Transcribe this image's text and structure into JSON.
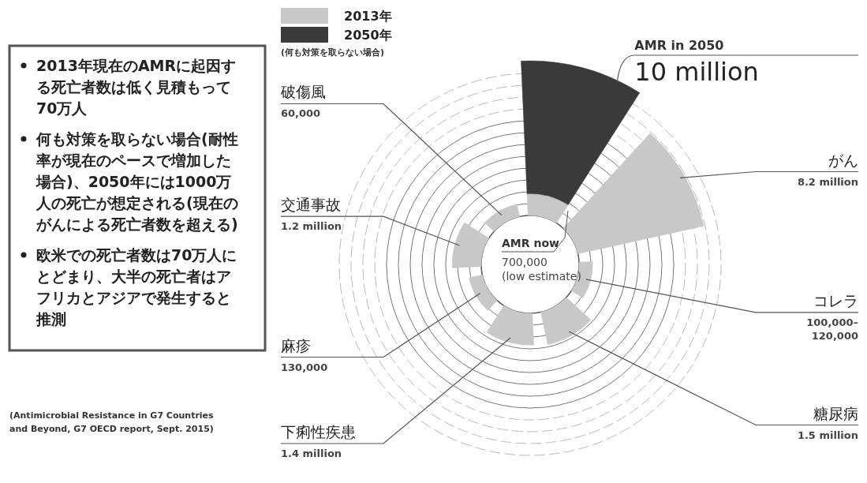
{
  "chart_data": {
    "type": "other",
    "categories": [
      "AMR in 2050",
      "AMR now",
      "がん",
      "コレラ",
      "糖尿病",
      "下痢性疾患",
      "麻疹",
      "交通事故",
      "破傷風"
    ],
    "series": [
      {
        "name": "2013年",
        "color": "#c8c8c8",
        "values": [
          null,
          700000,
          8200000,
          120000,
          1500000,
          1400000,
          130000,
          1200000,
          60000
        ],
        "value_labels": [
          null,
          "700,000\n(low estimate)",
          "8.2 million",
          "100,000–\n120,000",
          "1.5 million",
          "1.4 million",
          "130,000",
          "1.2 million",
          "60,000"
        ]
      },
      {
        "name": "2050年",
        "color": "#3a3a3a",
        "values": [
          10000000,
          null,
          null,
          null,
          null,
          null,
          null,
          null,
          null
        ],
        "value_labels": [
          "10 million",
          null,
          null,
          null,
          null,
          null,
          null,
          null,
          null
        ]
      }
    ],
    "legend": "top left",
    "legend_title": "(何も対策を取らない場合)",
    "annotations": [
      "2013年現在のAMRに起因する死亡者数は低く見積もって70万人",
      "何も対策を取らない場合(耐性率が現在のペースで増加した場合)、2050年には1000万人の死亡が想定される(現在のがんによる死亡者数を超える)",
      "欧米での死亡者数は70万人にとどまり、大半の死亡者はアフリカとアジアで発生すると推測",
      "(Antimicrobial Resistance in G7 Countries and Beyond, G7 OECD report, Sept. 2015)"
    ]
  }
}
